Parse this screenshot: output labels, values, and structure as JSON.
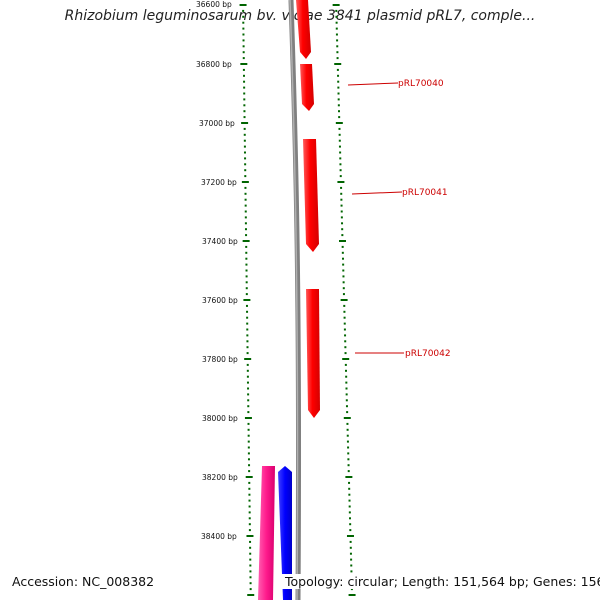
{
  "title": "Rhizobium leguminosarum bv. viciae 3841 plasmid pRL7, comple...",
  "footer": {
    "accession": "Accession: NC_008382",
    "topology": "Topology: circular; Length: 151,564 bp; Genes: 156"
  },
  "colors": {
    "forward_gene": "#ff0000",
    "reverse_gene_blue": "#0000ff",
    "reverse_gene_magenta": "#ff1a8c",
    "ruler_ticks": "#006400",
    "backbone": "#808080",
    "label_text": "#cc0000"
  },
  "ruler": {
    "range_bp": [
      36600,
      38400
    ],
    "labels": [
      "36600 bp",
      "36800 bp",
      "37000 bp",
      "37200 bp",
      "37400 bp",
      "37600 bp",
      "37800 bp",
      "38000 bp",
      "38200 bp",
      "38400 bp"
    ]
  },
  "genes": [
    {
      "name": "",
      "strand": "+",
      "color": "#ff0000"
    },
    {
      "name": "pRL70040",
      "strand": "+",
      "color": "#ff0000"
    },
    {
      "name": "pRL70041",
      "strand": "+",
      "color": "#ff0000"
    },
    {
      "name": "pRL70042",
      "strand": "+",
      "color": "#ff0000"
    },
    {
      "name": "",
      "strand": "-",
      "color": "#0000ff"
    },
    {
      "name": "",
      "strand": "-",
      "color": "#ff1a8c"
    }
  ]
}
